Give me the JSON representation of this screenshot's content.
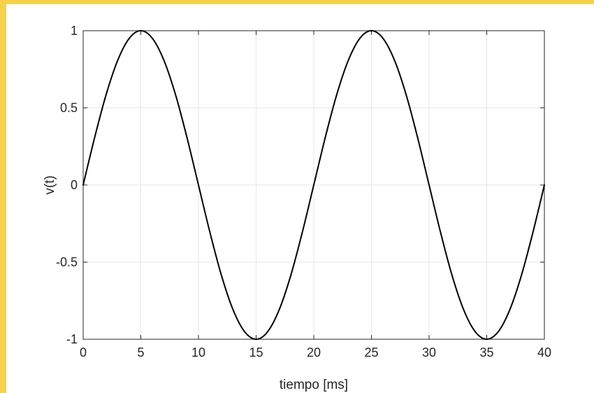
{
  "theme": {
    "border_color": "#F6D24A",
    "grid_color": "#e6e6e6",
    "axis_color": "#262626",
    "line_color": "#000000"
  },
  "chart_data": {
    "type": "line",
    "title": "",
    "xlabel": "tiempo [ms]",
    "ylabel": "v(t)",
    "xlim": [
      0,
      40
    ],
    "ylim": [
      -1,
      1
    ],
    "xticks": [
      0,
      5,
      10,
      15,
      20,
      25,
      30,
      35,
      40
    ],
    "yticks": [
      -1,
      -0.5,
      0,
      0.5,
      1
    ],
    "xtick_labels": [
      "0",
      "5",
      "10",
      "15",
      "20",
      "25",
      "30",
      "35",
      "40"
    ],
    "ytick_labels": [
      "-1",
      "-0.5",
      "0",
      "0.5",
      "1"
    ],
    "grid": true,
    "legend": "none",
    "series": [
      {
        "x": [
          0,
          1,
          2,
          3,
          4,
          5,
          6,
          7,
          8,
          9,
          10,
          11,
          12,
          13,
          14,
          15,
          16,
          17,
          18,
          19,
          20,
          21,
          22,
          23,
          24,
          25,
          26,
          27,
          28,
          29,
          30,
          31,
          32,
          33,
          34,
          35,
          36,
          37,
          38,
          39,
          40
        ],
        "y": [
          0,
          0.309,
          0.588,
          0.809,
          0.951,
          1,
          0.951,
          0.809,
          0.588,
          0.309,
          0,
          -0.309,
          -0.588,
          -0.809,
          -0.951,
          -1,
          -0.951,
          -0.809,
          -0.588,
          -0.309,
          0,
          0.309,
          0.588,
          0.809,
          0.951,
          1,
          0.951,
          0.809,
          0.588,
          0.309,
          0,
          -0.309,
          -0.588,
          -0.809,
          -0.951,
          -1,
          -0.951,
          -0.809,
          -0.588,
          -0.309,
          0
        ]
      }
    ]
  }
}
